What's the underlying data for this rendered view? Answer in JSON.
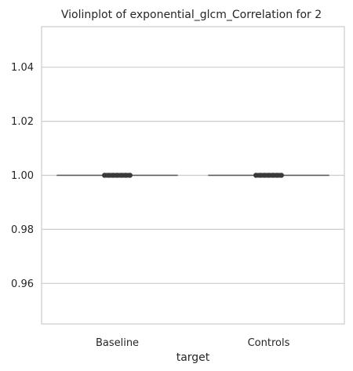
{
  "chart_data": {
    "type": "violin",
    "title": "Violinplot of exponential_glcm_Correlation for 2",
    "xlabel": "target",
    "ylabel": "",
    "categories": [
      "Baseline",
      "Controls"
    ],
    "values": [
      1.0,
      1.0
    ],
    "ylim": [
      0.945,
      1.055
    ],
    "yticks": [
      0.96,
      0.98,
      1.0,
      1.02,
      1.04
    ],
    "ytick_labels": [
      "0.96",
      "0.98",
      "1.00",
      "1.02",
      "1.04"
    ],
    "grid": "horizontal",
    "colors": {
      "grid": "#cccccc",
      "frame": "#cccccc",
      "line": "#555555",
      "box": "#3a3a3a",
      "text": "#262626"
    }
  }
}
